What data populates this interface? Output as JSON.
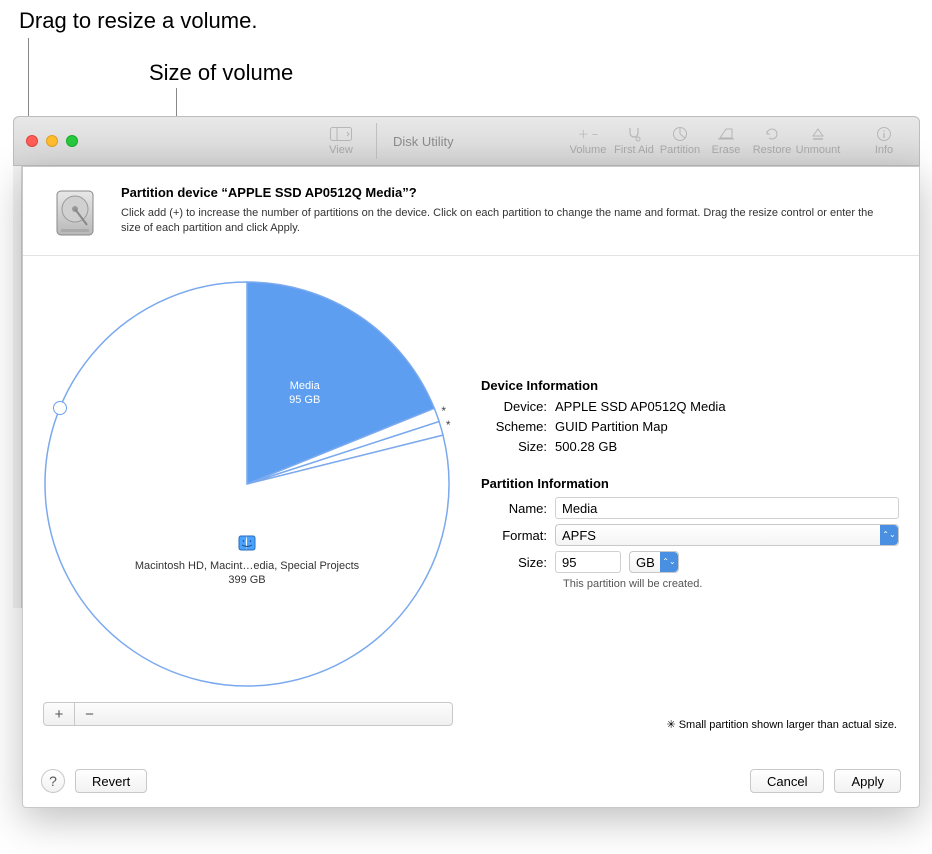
{
  "annotations": {
    "drag": "Drag to resize a volume.",
    "size": "Size of volume"
  },
  "toolbar": {
    "title": "Disk Utility",
    "view": "View",
    "volume": "Volume",
    "first_aid": "First Aid",
    "partition": "Partition",
    "erase": "Erase",
    "restore": "Restore",
    "unmount": "Unmount",
    "info": "Info"
  },
  "sheet": {
    "title": "Partition device “APPLE SSD AP0512Q Media”?",
    "desc": "Click add (+) to increase the number of partitions on the device. Click on each partition to change the name and format. Drag the resize control or enter the size of each partition and click Apply."
  },
  "pie": {
    "type": "pie",
    "radius": 204,
    "stroke_color": "#7aa9ee",
    "stroke_width": 1.5,
    "background_color": "#ffffff",
    "start_angle_deg": -90,
    "slices": [
      {
        "label_line1": "Media",
        "label_line2": "95 GB",
        "value_gb": 95,
        "angle_deg": 68,
        "fill": "#5d9ef1",
        "text_color": "#ffffff",
        "selected": true
      },
      {
        "label_line1": "*",
        "angle_deg": 4,
        "fill": "#ffffff"
      },
      {
        "label_line1": "*",
        "angle_deg": 4,
        "fill": "#ffffff"
      },
      {
        "label_line1": "Macintosh HD, Macint…edia, Special Projects",
        "label_line2": "399 GB",
        "value_gb": 399,
        "angle_deg": 284,
        "fill": "#ffffff",
        "text_color": "#333333"
      }
    ],
    "resize_handle": {
      "angle_deg": -158
    }
  },
  "device_info": {
    "heading": "Device Information",
    "device_k": "Device:",
    "device_v": "APPLE SSD AP0512Q Media",
    "scheme_k": "Scheme:",
    "scheme_v": "GUID Partition Map",
    "size_k": "Size:",
    "size_v": "500.28 GB"
  },
  "partition_info": {
    "heading": "Partition Information",
    "name_k": "Name:",
    "name_v": "Media",
    "format_k": "Format:",
    "format_v": "APFS",
    "size_k": "Size:",
    "size_v": "95",
    "size_unit": "GB",
    "note": "This partition will be created."
  },
  "footnote": "✳︎ Small partition shown larger than actual size.",
  "buttons": {
    "help": "?",
    "revert": "Revert",
    "cancel": "Cancel",
    "apply": "Apply",
    "plus": "+",
    "minus": "−"
  }
}
